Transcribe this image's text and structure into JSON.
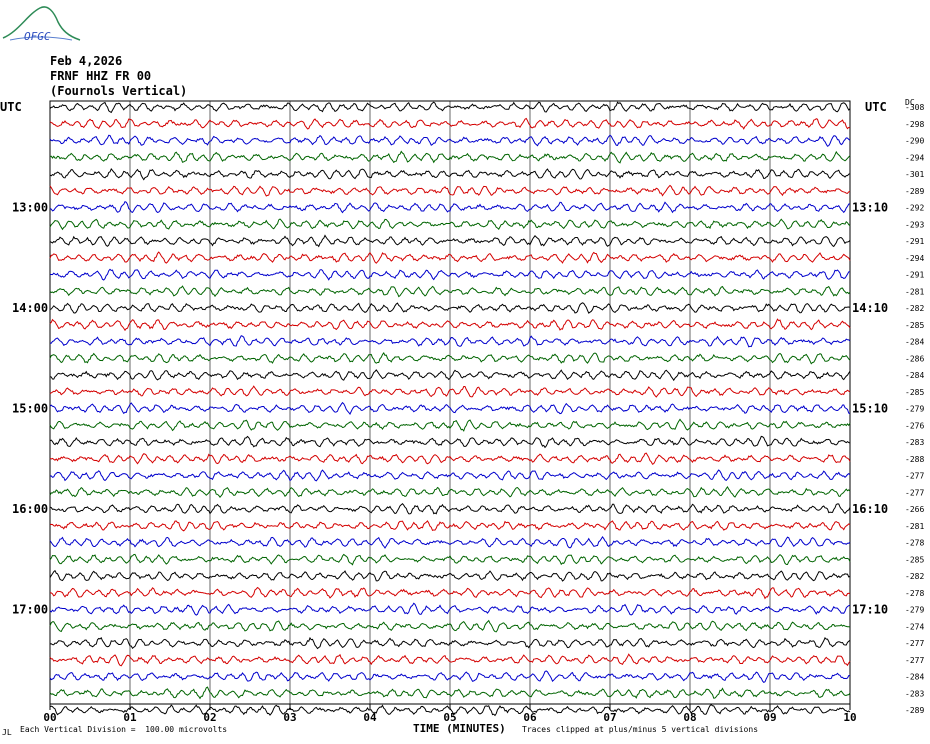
{
  "logo_text": "OFGC",
  "header": {
    "date": "Feb 4,2026",
    "station": "FRNF HHZ FR 00",
    "location": "(Fournols Vertical)"
  },
  "utc_left": "UTC",
  "utc_right": "UTC",
  "dc_label": "DC",
  "footer": {
    "division": "Each Vertical Division =  100.00 microvolts",
    "clip": "Traces clipped at plus/minus 5 vertical divisions",
    "corner": "JL"
  },
  "colors": {
    "trace_cycle": [
      "#000000",
      "#d40000",
      "#0000cc",
      "#006400"
    ],
    "grid": "#000000"
  },
  "chart_data": {
    "type": "line",
    "title": "",
    "xlabel": "TIME (MINUTES)",
    "x_ticks": [
      "00",
      "01",
      "02",
      "03",
      "04",
      "05",
      "06",
      "07",
      "08",
      "09",
      "10"
    ],
    "xlim": [
      0,
      10
    ],
    "left_time_labels": [
      {
        "row": 6,
        "text": "13:00"
      },
      {
        "row": 12,
        "text": "14:00"
      },
      {
        "row": 18,
        "text": "15:00"
      },
      {
        "row": 24,
        "text": "16:00"
      },
      {
        "row": 30,
        "text": "17:00"
      }
    ],
    "right_time_labels": [
      {
        "row": 6,
        "text": "13:10"
      },
      {
        "row": 12,
        "text": "14:10"
      },
      {
        "row": 18,
        "text": "15:10"
      },
      {
        "row": 24,
        "text": "16:10"
      },
      {
        "row": 30,
        "text": "17:10"
      }
    ],
    "dc_offsets": [
      "-308",
      "-298",
      "-290",
      "-294",
      "-301",
      "-289",
      "-292",
      "-293",
      "-291",
      "-294",
      "-291",
      "-281",
      "-282",
      "-285",
      "-284",
      "-286",
      "-284",
      "-285",
      "-279",
      "-276",
      "-283",
      "-288",
      "-277",
      "-277",
      "-266",
      "-281",
      "-278",
      "-285",
      "-282",
      "-278",
      "-279",
      "-274",
      "-277",
      "-277",
      "-284",
      "-283",
      "-289"
    ]
  }
}
